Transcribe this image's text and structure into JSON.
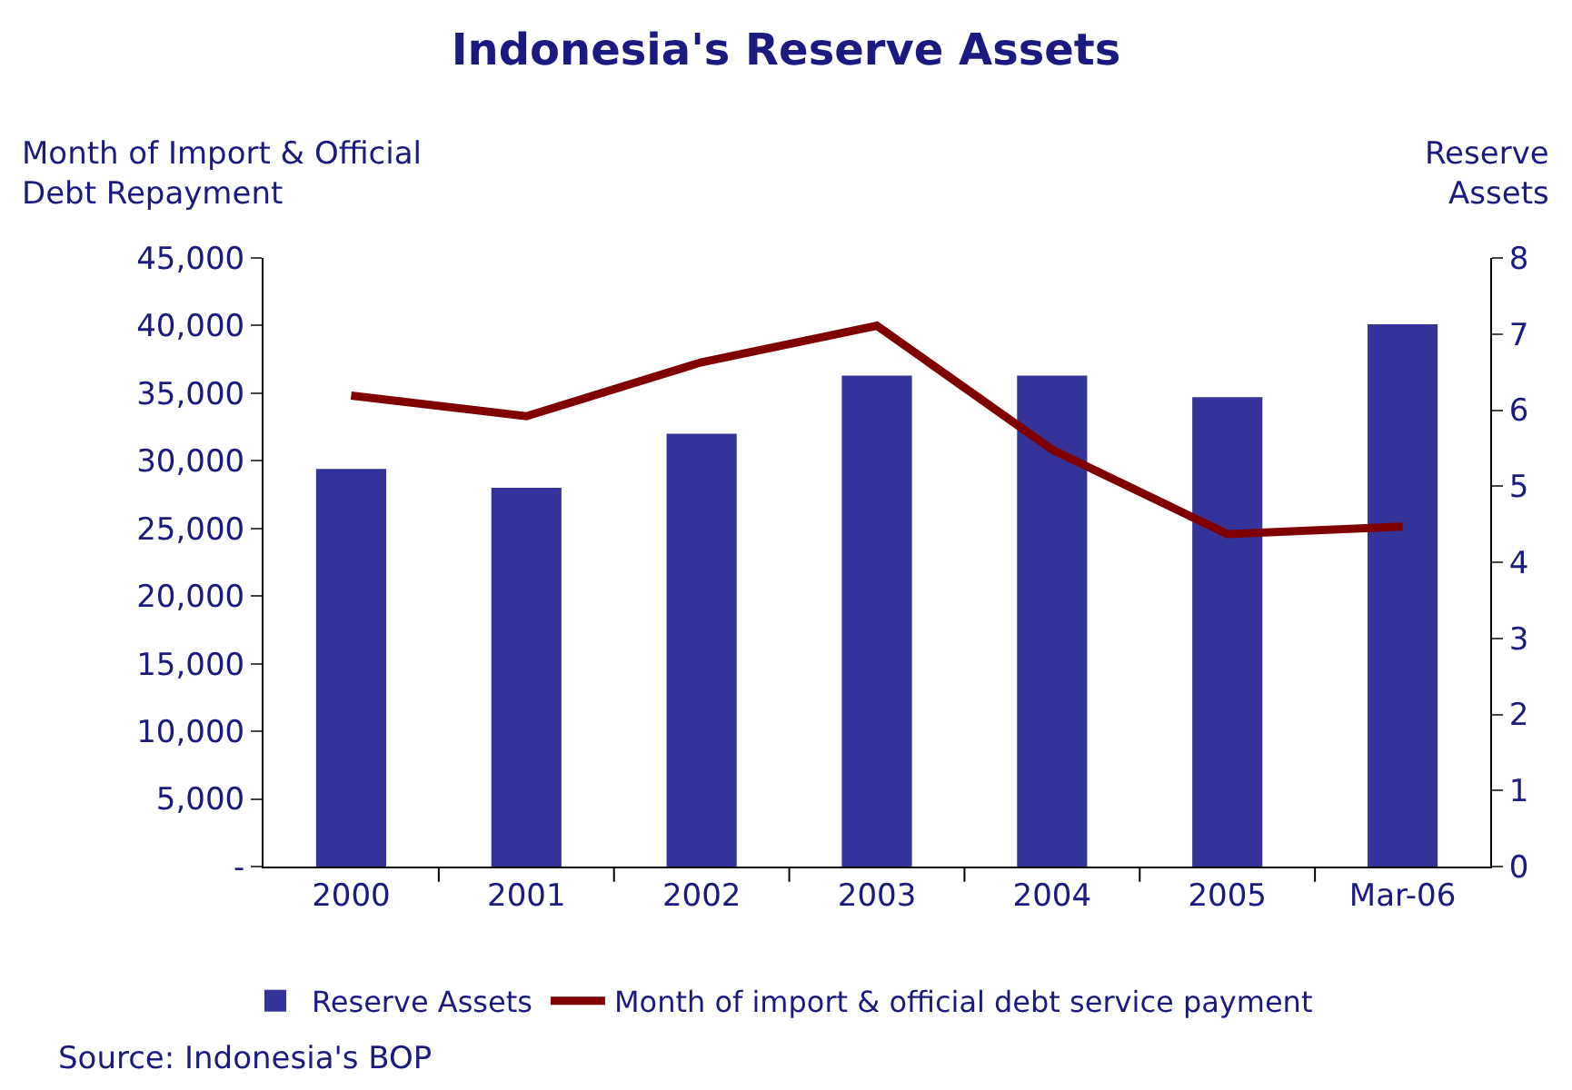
{
  "chart_data": {
    "type": "bar",
    "title": "Indonesia's Reserve Assets",
    "ylabel": "Month of Import & Official\nDebt Repayment",
    "y2label": "Reserve\nAssets",
    "categories": [
      "2000",
      "2001",
      "2002",
      "2003",
      "2004",
      "2005",
      "Mar-06"
    ],
    "series": [
      {
        "name": "Reserve Assets",
        "color": "#333399",
        "values": [
          29400,
          28000,
          32000,
          36300,
          36300,
          34700,
          40100
        ]
      },
      {
        "name": "Month of import & official debt service payment",
        "type": "line",
        "axis": "y2",
        "color": "#800000",
        "marker": "none",
        "values": [
          6.19,
          5.92,
          6.63,
          7.11,
          5.48,
          4.37,
          4.47
        ]
      }
    ],
    "ylim": [
      0,
      45000
    ],
    "yticks": [
      {
        "value": 0,
        "label": "-"
      },
      {
        "value": 5000,
        "label": "5,000"
      },
      {
        "value": 10000,
        "label": "10,000"
      },
      {
        "value": 15000,
        "label": "15,000"
      },
      {
        "value": 20000,
        "label": "20,000"
      },
      {
        "value": 25000,
        "label": "25,000"
      },
      {
        "value": 30000,
        "label": "30,000"
      },
      {
        "value": 35000,
        "label": "35,000"
      },
      {
        "value": 40000,
        "label": "40,000"
      },
      {
        "value": 45000,
        "label": "45,000"
      }
    ],
    "y2lim": [
      0,
      8
    ],
    "y2ticks": [
      0,
      1,
      2,
      3,
      4,
      5,
      6,
      7,
      8
    ],
    "legend": "bottom",
    "annotations": [
      "Source: Indonesia's BOP"
    ]
  }
}
